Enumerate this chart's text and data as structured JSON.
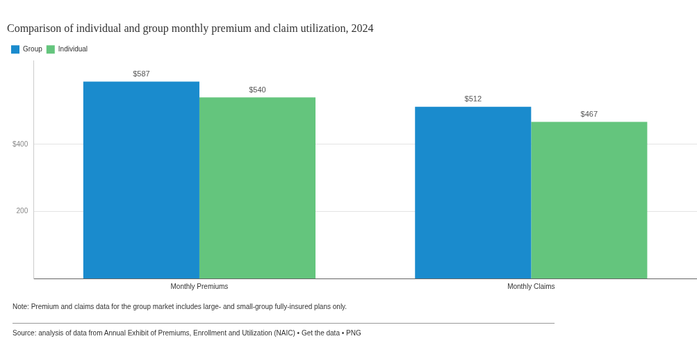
{
  "chart_data": {
    "type": "bar",
    "title": "Comparison of individual and group monthly premium and claim utilization, 2024",
    "categories": [
      "Monthly Premiums",
      "Monthly Claims"
    ],
    "series": [
      {
        "name": "Group",
        "color": "#1a8bcd",
        "values": [
          587,
          512
        ],
        "value_labels": [
          "$587",
          "$512"
        ]
      },
      {
        "name": "Individual",
        "color": "#64c57d",
        "values": [
          540,
          467
        ],
        "value_labels": [
          "$540",
          "$467"
        ]
      }
    ],
    "ylim": [
      0,
      650
    ],
    "yticks": [
      {
        "value": 200,
        "label": "200"
      },
      {
        "value": 400,
        "label": "$400"
      }
    ],
    "grid": "y",
    "legend": "top left",
    "annotations": [
      "Note: Premium and claims data for the group market includes large- and small-group fully-insured plans only.",
      "Source: analysis of data from Annual Exhibit of Premiums, Enrollment and Utilization (NAIC) • Get the data • PNG"
    ]
  }
}
